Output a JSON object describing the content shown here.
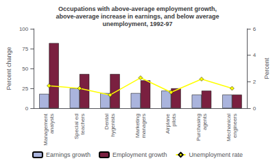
{
  "chart_data": {
    "type": "bar",
    "title": "Occupations with above-average employment growth,\nabove-average increase in earnings, and below average\nunemployment, 1992-97",
    "categories": [
      "Management\nanalysts",
      "Special ed\nteachers",
      "Dental\nhygenists",
      "Marketing\nmanagers",
      "Airplane\npilots",
      "Purchasing\nagents",
      "Mechanical\nengineers"
    ],
    "series": [
      {
        "name": "Earnings growth",
        "type": "bar",
        "color": "#aab4dd",
        "values": [
          18,
          25,
          19,
          19,
          22,
          17,
          17
        ]
      },
      {
        "name": "Employment growth",
        "type": "bar",
        "color": "#7a2040",
        "values": [
          82,
          43,
          43,
          35,
          25,
          22,
          17
        ]
      },
      {
        "name": "Unemployment rate",
        "type": "line",
        "color": "#ffff00",
        "marker": "diamond",
        "axis": "y2",
        "values": [
          1.7,
          1.5,
          1.0,
          2.3,
          1.2,
          2.2,
          1.5
        ]
      }
    ],
    "ylabel": "Percent change",
    "y2label": "Percent",
    "ylim": [
      0,
      100
    ],
    "yticks": [
      0,
      25,
      50,
      75,
      100
    ],
    "y2lim": [
      0,
      6
    ],
    "y2ticks": [
      0,
      2,
      4,
      6
    ],
    "legend": "bottom",
    "grid": false
  }
}
